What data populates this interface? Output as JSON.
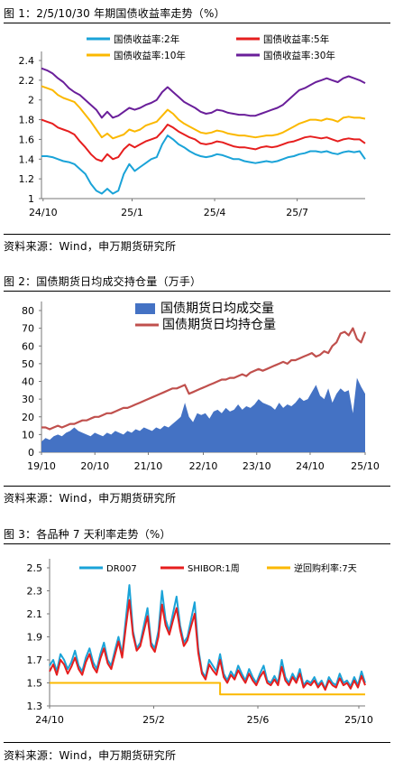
{
  "source_note": "资料来源：Wind，申万期货研究所",
  "chart_data": [
    {
      "type": "line",
      "title": "图 1：2/5/10/30 年期国债收益率走势（%）",
      "xlabel": "",
      "ylabel": "",
      "x_tick_labels": [
        "24/10",
        "25/1",
        "25/4",
        "25/7"
      ],
      "y_tick_labels": [
        "1",
        "1.2",
        "1.4",
        "1.6",
        "1.8",
        "2",
        "2.2",
        "2.4"
      ],
      "ylim": [
        1.0,
        2.4
      ],
      "grid": false,
      "legend_position": "top",
      "series": [
        {
          "name": "国债收益率:2年",
          "color": "#1aa3d8",
          "values": [
            1.43,
            1.43,
            1.42,
            1.4,
            1.38,
            1.37,
            1.35,
            1.3,
            1.25,
            1.15,
            1.08,
            1.05,
            1.1,
            1.05,
            1.08,
            1.25,
            1.35,
            1.28,
            1.32,
            1.36,
            1.4,
            1.42,
            1.55,
            1.64,
            1.6,
            1.55,
            1.52,
            1.48,
            1.45,
            1.43,
            1.42,
            1.43,
            1.45,
            1.44,
            1.42,
            1.4,
            1.4,
            1.38,
            1.37,
            1.36,
            1.37,
            1.38,
            1.37,
            1.38,
            1.4,
            1.42,
            1.43,
            1.45,
            1.46,
            1.48,
            1.48,
            1.47,
            1.48,
            1.46,
            1.45,
            1.47,
            1.48,
            1.47,
            1.48,
            1.4
          ]
        },
        {
          "name": "国债收益率:5年",
          "color": "#e61e1e",
          "values": [
            1.8,
            1.78,
            1.76,
            1.72,
            1.7,
            1.68,
            1.65,
            1.58,
            1.52,
            1.45,
            1.4,
            1.38,
            1.45,
            1.4,
            1.42,
            1.5,
            1.55,
            1.52,
            1.55,
            1.58,
            1.6,
            1.62,
            1.68,
            1.75,
            1.72,
            1.68,
            1.65,
            1.62,
            1.6,
            1.56,
            1.55,
            1.56,
            1.58,
            1.57,
            1.55,
            1.53,
            1.52,
            1.52,
            1.51,
            1.5,
            1.52,
            1.53,
            1.52,
            1.53,
            1.55,
            1.57,
            1.58,
            1.6,
            1.62,
            1.63,
            1.62,
            1.61,
            1.62,
            1.6,
            1.58,
            1.6,
            1.61,
            1.6,
            1.6,
            1.56
          ]
        },
        {
          "name": "国债收益率:10年",
          "color": "#fbb800",
          "values": [
            2.14,
            2.12,
            2.1,
            2.05,
            2.02,
            2.0,
            1.98,
            1.92,
            1.85,
            1.78,
            1.7,
            1.62,
            1.66,
            1.61,
            1.63,
            1.65,
            1.7,
            1.68,
            1.7,
            1.74,
            1.76,
            1.78,
            1.84,
            1.9,
            1.86,
            1.8,
            1.76,
            1.73,
            1.7,
            1.67,
            1.66,
            1.67,
            1.69,
            1.68,
            1.66,
            1.65,
            1.64,
            1.64,
            1.63,
            1.62,
            1.63,
            1.64,
            1.64,
            1.65,
            1.67,
            1.7,
            1.73,
            1.76,
            1.78,
            1.8,
            1.8,
            1.79,
            1.81,
            1.8,
            1.78,
            1.82,
            1.83,
            1.82,
            1.82,
            1.81
          ]
        },
        {
          "name": "国债收益率:30年",
          "color": "#6a1f9a",
          "values": [
            2.32,
            2.3,
            2.27,
            2.22,
            2.18,
            2.12,
            2.08,
            2.05,
            2.0,
            1.95,
            1.9,
            1.82,
            1.88,
            1.82,
            1.84,
            1.88,
            1.92,
            1.9,
            1.92,
            1.95,
            1.97,
            2.0,
            2.08,
            2.13,
            2.08,
            2.03,
            1.98,
            1.95,
            1.92,
            1.88,
            1.86,
            1.87,
            1.9,
            1.89,
            1.87,
            1.86,
            1.85,
            1.85,
            1.84,
            1.84,
            1.86,
            1.88,
            1.9,
            1.92,
            1.95,
            2.0,
            2.05,
            2.1,
            2.12,
            2.15,
            2.18,
            2.2,
            2.22,
            2.2,
            2.18,
            2.22,
            2.24,
            2.22,
            2.2,
            2.17
          ]
        }
      ]
    },
    {
      "type": "area",
      "title": "图 2：国债期货日均成交持仓量（万手）",
      "xlabel": "",
      "ylabel": "",
      "x_tick_labels": [
        "19/10",
        "20/10",
        "21/10",
        "22/10",
        "23/10",
        "24/10",
        "25/10"
      ],
      "y_tick_labels": [
        "0",
        "10",
        "20",
        "30",
        "40",
        "50",
        "60",
        "70",
        "80"
      ],
      "ylim": [
        0,
        80
      ],
      "grid": false,
      "legend_position": "top-right",
      "series": [
        {
          "name": "国债期货日均成交量",
          "color": "#4472c4",
          "kind": "area",
          "values": [
            6,
            8,
            7,
            9,
            10,
            9,
            11,
            12,
            14,
            12,
            11,
            10,
            9,
            11,
            10,
            9,
            11,
            10,
            12,
            11,
            10,
            12,
            11,
            13,
            12,
            14,
            13,
            12,
            14,
            13,
            15,
            14,
            16,
            18,
            20,
            28,
            20,
            17,
            22,
            21,
            22,
            19,
            23,
            24,
            22,
            25,
            23,
            24,
            27,
            24,
            26,
            25,
            27,
            30,
            28,
            27,
            26,
            24,
            28,
            25,
            27,
            26,
            28,
            31,
            29,
            30,
            34,
            38,
            32,
            30,
            36,
            28,
            33,
            36,
            34,
            35,
            22,
            42,
            37,
            33
          ]
        },
        {
          "name": "国债期货日均持仓量",
          "color": "#c0504d",
          "kind": "line",
          "values": [
            14,
            14,
            13,
            14,
            15,
            14,
            15,
            16,
            16,
            17,
            18,
            18,
            19,
            20,
            20,
            21,
            22,
            22,
            23,
            24,
            25,
            25,
            26,
            27,
            28,
            29,
            30,
            31,
            32,
            33,
            34,
            35,
            36,
            36,
            37,
            38,
            33,
            34,
            35,
            36,
            37,
            38,
            39,
            40,
            41,
            41,
            42,
            42,
            43,
            44,
            43,
            45,
            46,
            47,
            46,
            47,
            48,
            49,
            50,
            51,
            50,
            52,
            52,
            53,
            54,
            55,
            56,
            54,
            55,
            57,
            56,
            60,
            62,
            67,
            68,
            66,
            70,
            64,
            62,
            68
          ]
        }
      ]
    },
    {
      "type": "line",
      "title": "图 3：各品种 7 天利率走势（%）",
      "xlabel": "",
      "ylabel": "",
      "x_tick_labels": [
        "24/10",
        "25/2",
        "25/6",
        "25/10"
      ],
      "y_tick_labels": [
        "1.3",
        "1.5",
        "1.7",
        "1.9",
        "2.1",
        "2.3",
        "2.5"
      ],
      "ylim": [
        1.3,
        2.5
      ],
      "grid": false,
      "legend_position": "top",
      "series": [
        {
          "name": "DR007",
          "color": "#1aa3d8",
          "values": [
            1.65,
            1.7,
            1.6,
            1.75,
            1.7,
            1.62,
            1.68,
            1.78,
            1.65,
            1.6,
            1.72,
            1.8,
            1.68,
            1.62,
            1.75,
            1.85,
            1.7,
            1.65,
            1.78,
            1.9,
            1.75,
            2.05,
            2.35,
            1.95,
            1.8,
            1.85,
            2.0,
            2.15,
            1.85,
            1.8,
            1.95,
            2.3,
            2.05,
            1.95,
            2.1,
            2.25,
            2.0,
            1.85,
            1.9,
            2.05,
            2.2,
            1.8,
            1.6,
            1.55,
            1.7,
            1.65,
            1.6,
            1.75,
            1.58,
            1.52,
            1.6,
            1.55,
            1.65,
            1.58,
            1.52,
            1.62,
            1.55,
            1.5,
            1.58,
            1.65,
            1.52,
            1.5,
            1.56,
            1.5,
            1.7,
            1.55,
            1.5,
            1.58,
            1.52,
            1.62,
            1.48,
            1.52,
            1.5,
            1.55,
            1.48,
            1.52,
            1.45,
            1.55,
            1.5,
            1.48,
            1.58,
            1.5,
            1.52,
            1.47,
            1.55,
            1.48,
            1.6,
            1.5
          ]
        },
        {
          "name": "SHIBOR:1周",
          "color": "#e61e1e",
          "values": [
            1.6,
            1.66,
            1.57,
            1.7,
            1.66,
            1.58,
            1.64,
            1.72,
            1.62,
            1.57,
            1.68,
            1.75,
            1.64,
            1.59,
            1.71,
            1.8,
            1.67,
            1.62,
            1.74,
            1.86,
            1.72,
            1.98,
            2.22,
            1.92,
            1.78,
            1.82,
            1.95,
            2.08,
            1.82,
            1.77,
            1.9,
            2.18,
            2.0,
            1.92,
            2.04,
            2.15,
            1.96,
            1.82,
            1.87,
            1.99,
            2.1,
            1.76,
            1.58,
            1.53,
            1.66,
            1.61,
            1.57,
            1.7,
            1.55,
            1.5,
            1.57,
            1.53,
            1.61,
            1.55,
            1.5,
            1.58,
            1.52,
            1.48,
            1.55,
            1.6,
            1.5,
            1.48,
            1.53,
            1.48,
            1.64,
            1.52,
            1.48,
            1.55,
            1.5,
            1.58,
            1.46,
            1.5,
            1.48,
            1.52,
            1.46,
            1.5,
            1.44,
            1.52,
            1.48,
            1.46,
            1.54,
            1.48,
            1.5,
            1.45,
            1.52,
            1.46,
            1.56,
            1.48
          ]
        },
        {
          "name": "逆回购利率:7天",
          "color": "#fbb800",
          "step": true,
          "values": [
            1.5,
            1.5,
            1.5,
            1.5,
            1.5,
            1.5,
            1.5,
            1.5,
            1.5,
            1.5,
            1.5,
            1.5,
            1.5,
            1.5,
            1.5,
            1.5,
            1.5,
            1.5,
            1.5,
            1.5,
            1.5,
            1.5,
            1.5,
            1.5,
            1.5,
            1.5,
            1.5,
            1.5,
            1.5,
            1.5,
            1.5,
            1.5,
            1.5,
            1.5,
            1.5,
            1.5,
            1.5,
            1.5,
            1.5,
            1.5,
            1.5,
            1.5,
            1.5,
            1.5,
            1.5,
            1.5,
            1.5,
            1.4,
            1.4,
            1.4,
            1.4,
            1.4,
            1.4,
            1.4,
            1.4,
            1.4,
            1.4,
            1.4,
            1.4,
            1.4,
            1.4,
            1.4,
            1.4,
            1.4,
            1.4,
            1.4,
            1.4,
            1.4,
            1.4,
            1.4,
            1.4,
            1.4,
            1.4,
            1.4,
            1.4,
            1.4,
            1.4,
            1.4,
            1.4,
            1.4,
            1.4,
            1.4,
            1.4,
            1.4,
            1.4,
            1.4,
            1.4,
            1.4
          ]
        }
      ]
    }
  ]
}
